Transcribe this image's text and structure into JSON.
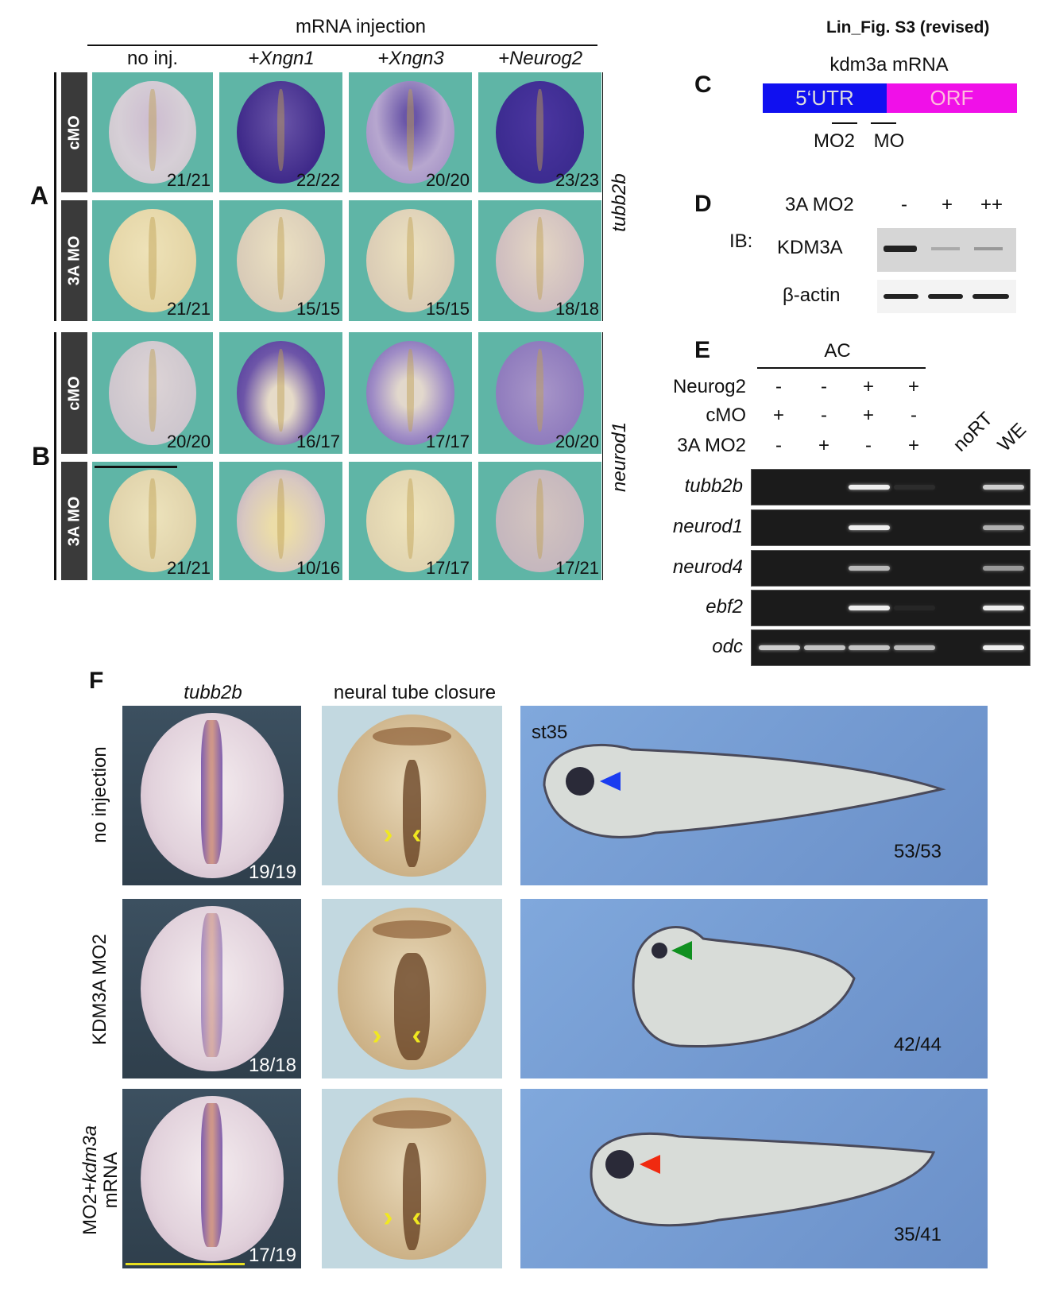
{
  "figure_title": "Lin_Fig. S3 (revised)",
  "panel_ab": {
    "header": "mRNA injection",
    "columns": [
      "no inj.",
      "+Xngn1",
      "+Xngn3",
      "+Neurog2"
    ],
    "label_a": "A",
    "label_b": "B",
    "marker_a": "tubb2b",
    "marker_b": "neurod1",
    "rows": [
      {
        "label": "cMO",
        "counts": [
          "21/21",
          "22/22",
          "20/20",
          "23/23"
        ]
      },
      {
        "label": "3A MO",
        "counts": [
          "21/21",
          "15/15",
          "15/15",
          "18/18"
        ]
      },
      {
        "label": "cMO",
        "counts": [
          "20/20",
          "16/17",
          "17/17",
          "20/20"
        ]
      },
      {
        "label": "3A MO",
        "counts": [
          "21/21",
          "10/16",
          "17/17",
          "17/21"
        ]
      }
    ]
  },
  "panel_c": {
    "label": "C",
    "title": "kdm3a mRNA",
    "segment_utr": "5‘UTR",
    "segment_orf": "ORF",
    "mo2": "MO2",
    "mo": "MO",
    "colors": {
      "utr": "#1010f0",
      "orf": "#f010e8"
    }
  },
  "panel_d": {
    "label": "D",
    "treatment": "3A MO2",
    "lanes": [
      "-",
      "+",
      "++"
    ],
    "ib": "IB:",
    "blot1": "KDM3A",
    "blot2": "β-actin"
  },
  "panel_e": {
    "label": "E",
    "group": "AC",
    "conditions": [
      {
        "name": "Neurog2",
        "values": [
          "-",
          "-",
          "+",
          "+"
        ]
      },
      {
        "name": "cMO",
        "values": [
          "+",
          "-",
          "+",
          "-"
        ]
      },
      {
        "name": "3A MO2",
        "values": [
          "-",
          "+",
          "-",
          "+"
        ]
      }
    ],
    "controls": [
      "noRT",
      "WE"
    ],
    "genes": [
      "tubb2b",
      "neurod1",
      "neurod4",
      "ebf2",
      "odc"
    ]
  },
  "panel_f": {
    "label": "F",
    "col_headers": [
      "tubb2b",
      "neural tube closure"
    ],
    "stage": "st35",
    "rows": [
      {
        "label": "no injection",
        "count_ish": "19/19",
        "count_tadpole": "53/53",
        "arrow_color": "#1a3cf0"
      },
      {
        "label": "KDM3A MO2",
        "count_ish": "18/18",
        "count_tadpole": "42/44",
        "arrow_color": "#109020"
      },
      {
        "label": "MO2+",
        "label_italic": "kdm3a",
        "label_line2": "mRNA",
        "count_ish": "17/19",
        "count_tadpole": "35/41",
        "arrow_color": "#f02a10"
      }
    ]
  }
}
